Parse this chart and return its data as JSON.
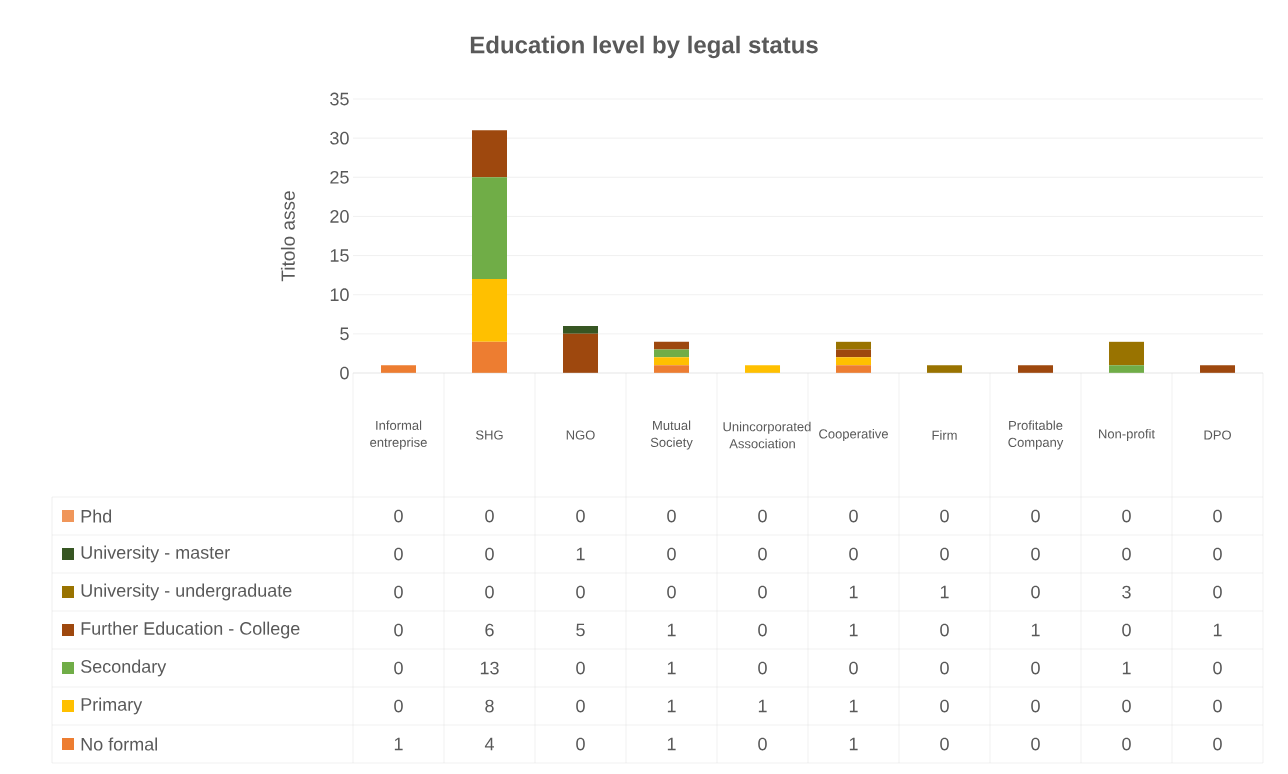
{
  "chart_data": {
    "type": "bar",
    "title": "Education level by legal status",
    "ylabel": "Titolo asse",
    "categories": [
      "Informal entreprise",
      "SHG",
      "NGO",
      "Mutual Society",
      "Unincorporated Association",
      "Cooperative",
      "Firm",
      "Profitable Company",
      "Non-profit",
      "DPO"
    ],
    "stacked": true,
    "ylim": [
      0,
      35
    ],
    "yticks": [
      0,
      5,
      10,
      15,
      20,
      25,
      30,
      35
    ],
    "grid": "y",
    "legend": "bottom",
    "data_labels": true,
    "series": [
      {
        "name": "No formal",
        "color": "#ed7d31",
        "values": [
          1,
          4,
          0,
          1,
          0,
          1,
          0,
          0,
          0,
          0
        ]
      },
      {
        "name": "Primary",
        "color": "#ffc000",
        "values": [
          0,
          8,
          0,
          1,
          1,
          1,
          0,
          0,
          0,
          0
        ]
      },
      {
        "name": "Secondary",
        "color": "#70ad47",
        "values": [
          0,
          13,
          0,
          1,
          0,
          0,
          0,
          0,
          1,
          0
        ]
      },
      {
        "name": "Further Education - College",
        "color": "#9e480e",
        "values": [
          0,
          6,
          5,
          1,
          0,
          1,
          0,
          1,
          0,
          1
        ]
      },
      {
        "name": "University - undergraduate",
        "color": "#997300",
        "values": [
          0,
          0,
          0,
          0,
          0,
          1,
          1,
          0,
          3,
          0
        ]
      },
      {
        "name": "University - master",
        "color": "#375623",
        "values": [
          0,
          0,
          1,
          0,
          0,
          0,
          0,
          0,
          0,
          0
        ]
      },
      {
        "name": "Phd",
        "color": "#f0965a",
        "values": [
          0,
          0,
          0,
          0,
          0,
          0,
          0,
          0,
          0,
          0
        ]
      }
    ]
  }
}
